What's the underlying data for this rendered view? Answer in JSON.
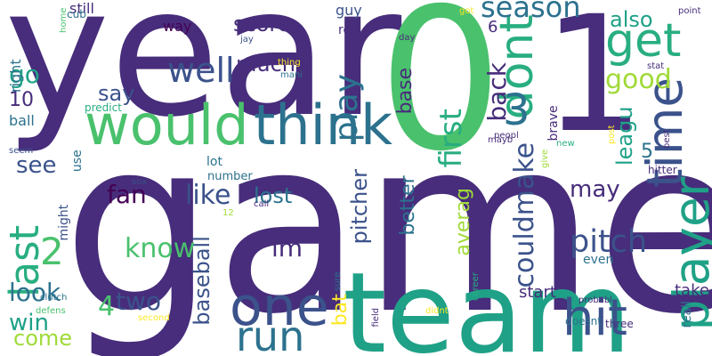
{
  "words": [
    {
      "text": "year",
      "color": "#472d7b"
    },
    {
      "text": "game",
      "color": "#472d7b"
    },
    {
      "text": "0",
      "color": "#4ac16d"
    },
    {
      "text": "1",
      "color": "#472d7b"
    },
    {
      "text": "team",
      "color": "#1fa187"
    },
    {
      "text": "would",
      "color": "#4ac16d"
    },
    {
      "text": "think",
      "color": "#2c728e"
    },
    {
      "text": "one",
      "color": "#3b528b"
    },
    {
      "text": "hit",
      "color": "#3b528b"
    },
    {
      "text": "dont",
      "color": "#28ae80"
    },
    {
      "text": "get",
      "color": "#28ae80"
    },
    {
      "text": "time",
      "color": "#3b528b"
    },
    {
      "text": "player",
      "color": "#1fa187"
    },
    {
      "text": "3",
      "color": "#2c728e"
    },
    {
      "text": "run",
      "color": "#2c728e"
    },
    {
      "text": "last",
      "color": "#28ae80"
    },
    {
      "text": "2",
      "color": "#4ac16d"
    },
    {
      "text": "well",
      "color": "#3b528b"
    },
    {
      "text": "play",
      "color": "#2c728e"
    },
    {
      "text": "pitch",
      "color": "#3b528b"
    },
    {
      "text": "first",
      "color": "#28ae80"
    },
    {
      "text": "couldmake",
      "color": "#3b528b"
    },
    {
      "text": "season",
      "color": "#2c728e"
    },
    {
      "text": "back",
      "color": "#472d7b"
    },
    {
      "text": "good",
      "color": "#a0da39"
    },
    {
      "text": "also",
      "color": "#1fa187"
    },
    {
      "text": "leagu",
      "color": "#1fa187"
    },
    {
      "text": "pitcher",
      "color": "#3b528b"
    },
    {
      "text": "baseball",
      "color": "#3b528b"
    },
    {
      "text": "better",
      "color": "#2c728e"
    },
    {
      "text": "averag",
      "color": "#a0da39"
    },
    {
      "text": "may",
      "color": "#472d7b"
    },
    {
      "text": "know",
      "color": "#4ac16d"
    },
    {
      "text": "like",
      "color": "#3b528b"
    },
    {
      "text": "fan",
      "color": "#440154"
    },
    {
      "text": "im",
      "color": "#472d7b"
    },
    {
      "text": "much",
      "color": "#472d7b"
    },
    {
      "text": "say",
      "color": "#3b528b"
    },
    {
      "text": "score",
      "color": "#472d7b"
    },
    {
      "text": "see",
      "color": "#3b528b"
    },
    {
      "text": "go",
      "color": "#1fa187"
    },
    {
      "text": "look",
      "color": "#2c728e"
    },
    {
      "text": "two",
      "color": "#3b528b"
    },
    {
      "text": "4",
      "color": "#4ac16d"
    },
    {
      "text": "win",
      "color": "#1fa187"
    },
    {
      "text": "come",
      "color": "#a0da39"
    },
    {
      "text": "lost",
      "color": "#2c728e"
    },
    {
      "text": "base",
      "color": "#472d7b"
    },
    {
      "text": "bat",
      "color": "#fde725"
    },
    {
      "text": "5",
      "color": "#2c728e"
    },
    {
      "text": "6",
      "color": "#472d7b"
    },
    {
      "text": "10",
      "color": "#472d7b"
    },
    {
      "text": "start",
      "color": "#472d7b"
    },
    {
      "text": "take",
      "color": "#472d7b"
    },
    {
      "text": "even",
      "color": "#2c728e"
    },
    {
      "text": "way",
      "color": "#440154"
    },
    {
      "text": "guy",
      "color": "#3b528b"
    },
    {
      "text": "red",
      "color": "#472d7b"
    },
    {
      "text": "brave",
      "color": "#472d7b"
    },
    {
      "text": "reall",
      "color": "#2c728e"
    },
    {
      "text": "still",
      "color": "#472d7b"
    },
    {
      "text": "right",
      "color": "#2c728e"
    },
    {
      "text": "ball",
      "color": "#2c728e"
    },
    {
      "text": "lot",
      "color": "#2c728e"
    },
    {
      "text": "number",
      "color": "#2c728e"
    },
    {
      "text": "might",
      "color": "#3b528b"
    },
    {
      "text": "use",
      "color": "#2c728e"
    },
    {
      "text": "cub",
      "color": "#2c728e"
    },
    {
      "text": "home",
      "color": "#4ac16d"
    },
    {
      "text": "predict",
      "color": "#28ae80"
    },
    {
      "text": "seem",
      "color": "#3b528b"
    },
    {
      "text": "sox",
      "color": "#3b528b"
    },
    {
      "text": "jay",
      "color": "#3b528b"
    },
    {
      "text": "thing",
      "color": "#fde725"
    },
    {
      "text": "mani",
      "color": "#2c728e"
    },
    {
      "text": "call",
      "color": "#472d7b"
    },
    {
      "text": "12",
      "color": "#a0da39"
    },
    {
      "text": "clutch",
      "color": "#2c728e"
    },
    {
      "text": "defens",
      "color": "#4ac16d"
    },
    {
      "text": "second",
      "color": "#fde725"
    },
    {
      "text": "sure",
      "color": "#2c728e"
    },
    {
      "text": "career",
      "color": "#28ae80"
    },
    {
      "text": "peopl",
      "color": "#472d7b"
    },
    {
      "text": "field",
      "color": "#472d7b"
    },
    {
      "text": "didnt",
      "color": "#fde725"
    },
    {
      "text": "doesnt",
      "color": "#2c728e"
    },
    {
      "text": "three",
      "color": "#472d7b"
    },
    {
      "text": "probabl",
      "color": "#472d7b"
    },
    {
      "text": "mayb",
      "color": "#472d7b"
    },
    {
      "text": "give",
      "color": "#a0da39"
    },
    {
      "text": "new",
      "color": "#28ae80"
    },
    {
      "text": "post",
      "color": "#fde725"
    },
    {
      "text": "day",
      "color": "#472d7b"
    },
    {
      "text": "got",
      "color": "#fde725"
    },
    {
      "text": "point",
      "color": "#472d7b"
    },
    {
      "text": "stat",
      "color": "#472d7b"
    },
    {
      "text": "best",
      "color": "#472d7b"
    },
    {
      "text": "hitter",
      "color": "#472d7b"
    }
  ]
}
